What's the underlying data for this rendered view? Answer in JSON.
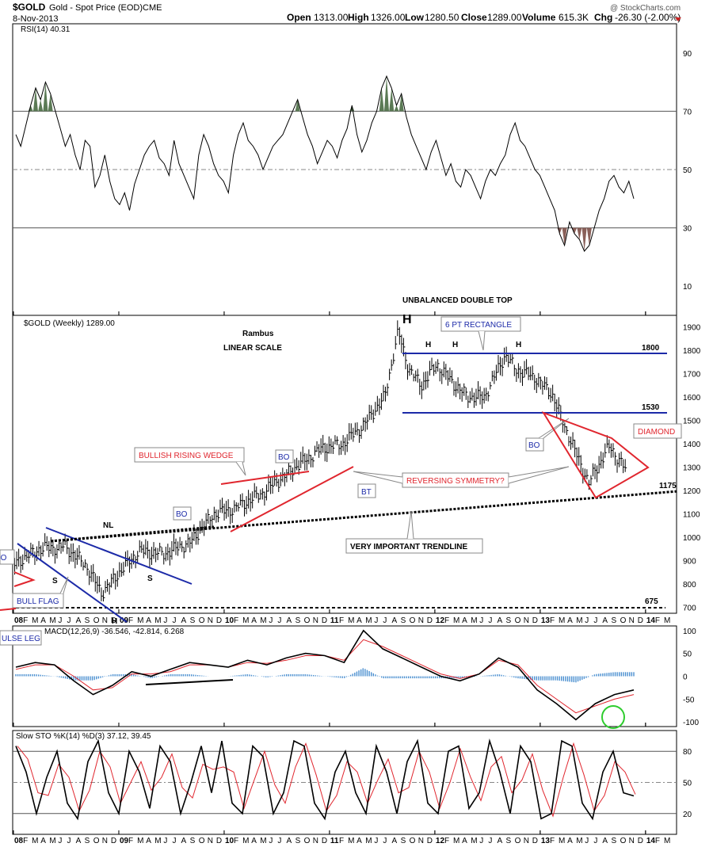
{
  "header": {
    "symbol": "$GOLD",
    "name": "Gold - Spot Price (EOD)",
    "exchange": "CME",
    "date": "8-Nov-2013",
    "open_label": "Open",
    "open": "1313.00",
    "high_label": "High",
    "high": "1326.00",
    "low_label": "Low",
    "low": "1280.50",
    "close_label": "Close",
    "close": "1289.00",
    "volume_label": "Volume",
    "volume": "615.3K",
    "chg_label": "Chg",
    "chg": "-26.30 (-2.00%)",
    "watermark": "@ StockCharts.com"
  },
  "colors": {
    "price_bar": "#000000",
    "grid": "#000000",
    "red_annot": "#e0262e",
    "blue_annot": "#1c2aa8",
    "rsi_overbought": "#5b7a55",
    "rsi_oversold": "#8a6059",
    "macd_hist": "#4a8fd0",
    "green_circle": "#2ecc2e"
  },
  "x_axis": {
    "labels": [
      "08",
      "F",
      "M",
      "A",
      "M",
      "J",
      "J",
      "A",
      "S",
      "O",
      "N",
      "D",
      "09",
      "F",
      "M",
      "A",
      "M",
      "J",
      "J",
      "A",
      "S",
      "O",
      "N",
      "D",
      "10",
      "F",
      "M",
      "A",
      "M",
      "J",
      "J",
      "A",
      "S",
      "O",
      "N",
      "D",
      "11",
      "F",
      "M",
      "A",
      "M",
      "J",
      "J",
      "A",
      "S",
      "O",
      "N",
      "D",
      "12",
      "F",
      "M",
      "A",
      "M",
      "J",
      "J",
      "A",
      "S",
      "O",
      "N",
      "D",
      "13",
      "F",
      "M",
      "A",
      "M",
      "J",
      "J",
      "A",
      "S",
      "O",
      "N",
      "D",
      "14",
      "F",
      "M"
    ]
  },
  "chart_data": [
    {
      "id": "rsi",
      "type": "line",
      "title": "RSI(14) 40.31",
      "ylim": [
        0,
        100
      ],
      "yticks": [
        10,
        30,
        50,
        70,
        90
      ],
      "reference_lines": [
        30,
        50,
        70
      ],
      "x_start": "2008-01",
      "x_end": "2013-11",
      "values": [
        62,
        58,
        65,
        72,
        78,
        74,
        80,
        76,
        70,
        64,
        58,
        62,
        55,
        50,
        60,
        58,
        44,
        48,
        55,
        46,
        40,
        38,
        42,
        36,
        45,
        50,
        55,
        58,
        60,
        54,
        52,
        48,
        60,
        52,
        48,
        44,
        40,
        55,
        62,
        58,
        52,
        48,
        46,
        42,
        55,
        62,
        66,
        60,
        58,
        55,
        50,
        54,
        58,
        60,
        62,
        66,
        70,
        74,
        68,
        62,
        58,
        52,
        56,
        60,
        58,
        54,
        60,
        64,
        72,
        62,
        56,
        60,
        66,
        70,
        78,
        82,
        78,
        72,
        76,
        68,
        62,
        58,
        54,
        50,
        56,
        60,
        54,
        48,
        52,
        46,
        44,
        50,
        48,
        44,
        40,
        46,
        50,
        48,
        52,
        55,
        62,
        66,
        60,
        58,
        54,
        50,
        48,
        44,
        40,
        36,
        28,
        24,
        32,
        28,
        26,
        22,
        24,
        30,
        36,
        40,
        46,
        48,
        44,
        42,
        46,
        40
      ]
    },
    {
      "id": "price",
      "type": "line",
      "title": "$GOLD (Weekly) 1289.00",
      "subtitle_1": "Rambus",
      "subtitle_2": "LINEAR SCALE",
      "ylim": [
        675,
        1950
      ],
      "yticks": [
        700,
        800,
        900,
        1000,
        1100,
        1200,
        1300,
        1400,
        1500,
        1600,
        1700,
        1800,
        1900
      ],
      "x": [
        2008.0,
        2008.25,
        2008.5,
        2008.7,
        2008.85,
        2009.0,
        2009.2,
        2009.45,
        2009.7,
        2009.92,
        2010.1,
        2010.35,
        2010.5,
        2010.7,
        2010.95,
        2011.15,
        2011.35,
        2011.55,
        2011.68,
        2011.78,
        2011.9,
        2012.05,
        2012.2,
        2012.35,
        2012.5,
        2012.7,
        2012.8,
        2013.0,
        2013.15,
        2013.3,
        2013.5,
        2013.55,
        2013.7,
        2013.85
      ],
      "values": [
        880,
        950,
        960,
        880,
        760,
        840,
        940,
        930,
        980,
        1100,
        1120,
        1180,
        1230,
        1300,
        1380,
        1400,
        1480,
        1600,
        1880,
        1720,
        1650,
        1740,
        1660,
        1600,
        1600,
        1780,
        1720,
        1680,
        1610,
        1440,
        1230,
        1280,
        1390,
        1289
      ]
    },
    {
      "id": "macd",
      "type": "line",
      "title": "MACD(12,26,9) -36.546, -42.814, 6.268",
      "ylim": [
        -110,
        110
      ],
      "yticks": [
        -100,
        -50,
        0,
        50,
        100
      ],
      "macd": [
        20,
        30,
        25,
        -10,
        -40,
        -20,
        10,
        0,
        15,
        30,
        25,
        20,
        35,
        25,
        40,
        50,
        45,
        30,
        100,
        60,
        40,
        20,
        0,
        -10,
        5,
        40,
        20,
        -30,
        -60,
        -95,
        -60,
        -40,
        -30
      ],
      "signal": [
        15,
        25,
        25,
        0,
        -30,
        -25,
        5,
        5,
        10,
        25,
        25,
        20,
        30,
        28,
        35,
        45,
        45,
        35,
        80,
        65,
        45,
        25,
        5,
        -5,
        5,
        35,
        25,
        -20,
        -50,
        -80,
        -65,
        -50,
        -40
      ]
    },
    {
      "id": "sto",
      "type": "line",
      "title": "Slow STO %K(14) %D(3) 37.12, 39.45",
      "ylim": [
        0,
        100
      ],
      "yticks": [
        20,
        50,
        80
      ],
      "values": [
        85,
        60,
        20,
        55,
        80,
        30,
        15,
        70,
        90,
        40,
        20,
        80,
        60,
        25,
        85,
        70,
        20,
        50,
        85,
        40,
        90,
        30,
        20,
        85,
        75,
        20,
        40,
        90,
        85,
        30,
        15,
        60,
        80,
        40,
        20,
        85,
        60,
        20,
        70,
        90,
        30,
        20,
        80,
        85,
        25,
        40,
        90,
        60,
        20,
        85,
        70,
        15,
        20,
        90,
        85,
        30,
        15,
        60,
        80,
        40,
        37
      ]
    }
  ],
  "annotations": {
    "unbalanced_double_top": "UNBALANCED DOUBLE TOP",
    "h_big": "H",
    "h1": "H",
    "h2": "H",
    "h3": "H",
    "six_pt_rectangle": "6 PT RECTANGLE",
    "level_1800": "1800",
    "level_1530": "1530",
    "level_1175": "1175",
    "level_675": "675",
    "bullish_rising_wedge": "BULLISH RISING WEDGE",
    "bo": "BO",
    "bt": "BT",
    "reversing_symmetry": "REVERSING SYMMETRY?",
    "diamond": "DIAMOND",
    "nl": "NL",
    "s": "S",
    "very_important_trendline": "VERY IMPORTANT TRENDLINE",
    "bull_flag": "BULL FLAG",
    "impulse_leg": "ULSE LEG"
  }
}
